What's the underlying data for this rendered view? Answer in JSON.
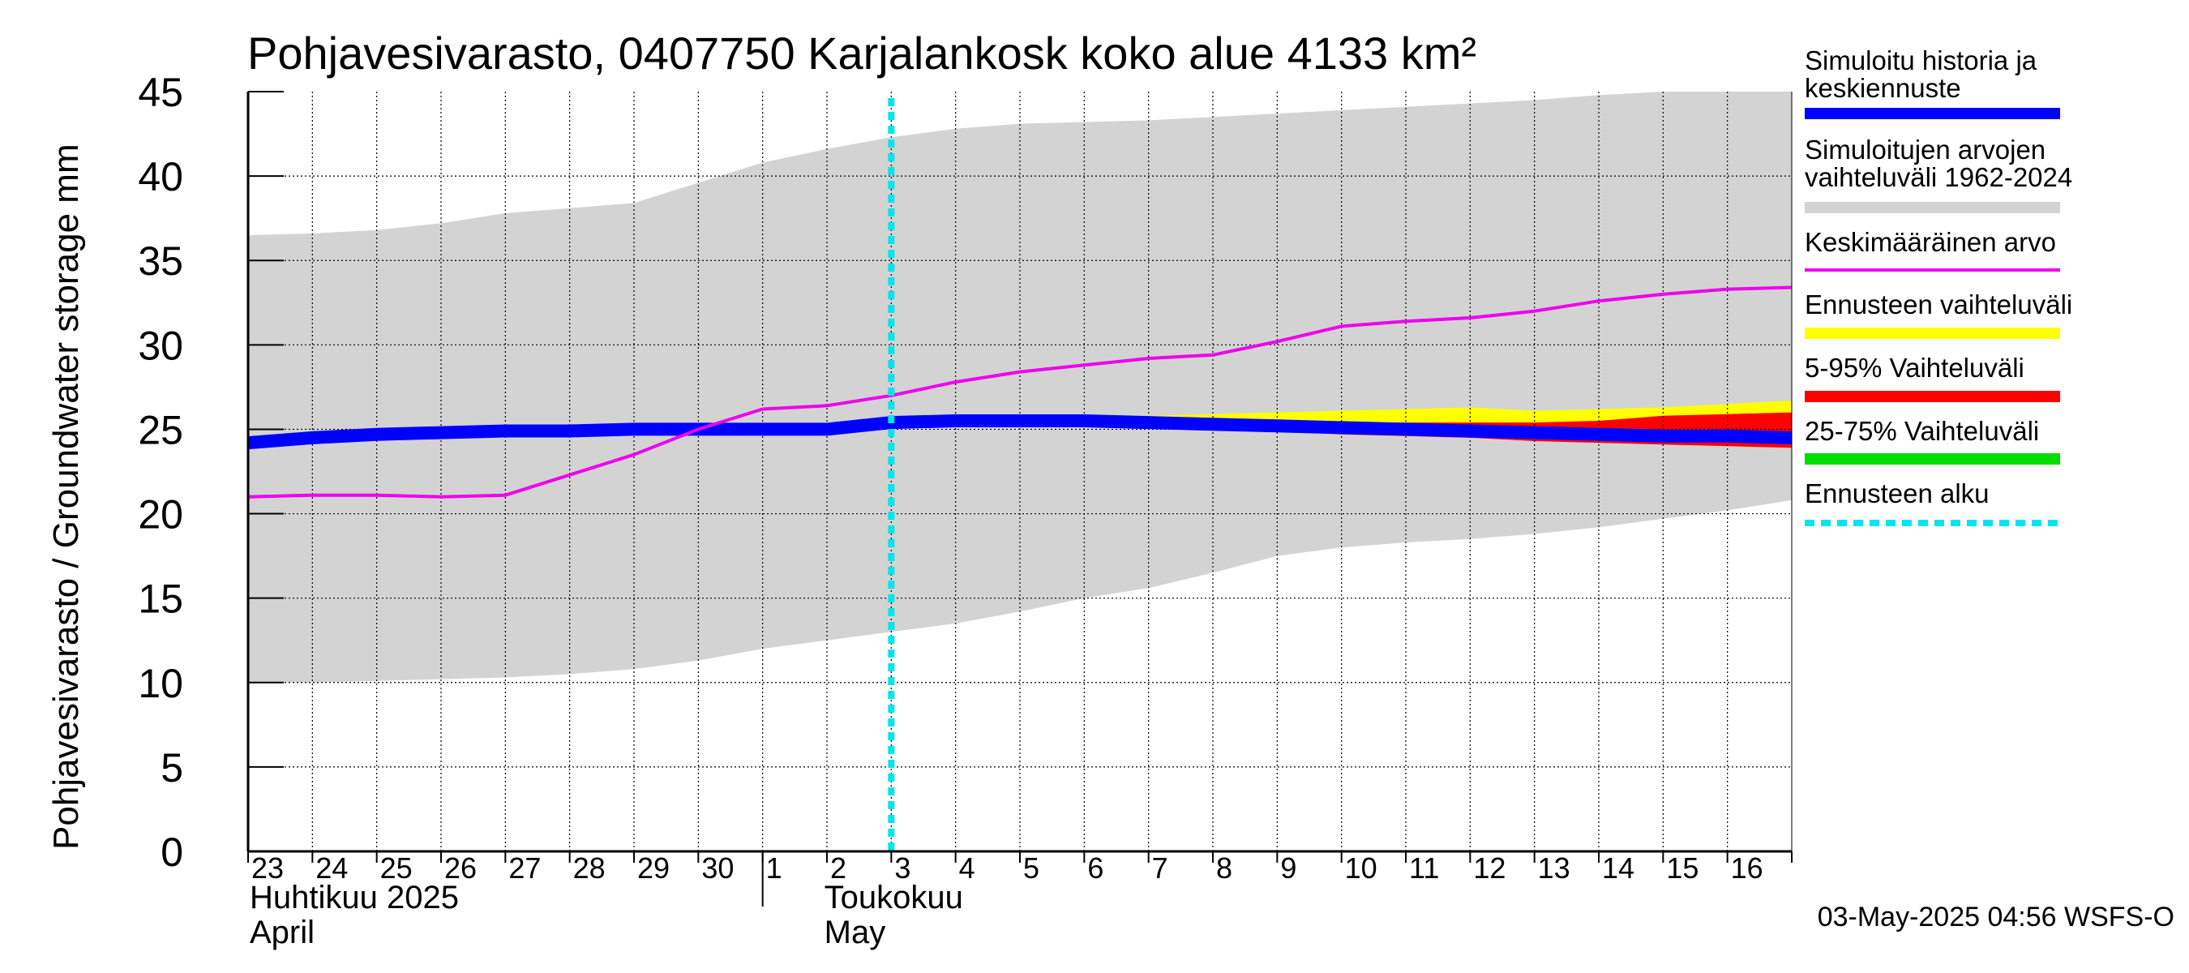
{
  "chart_data": {
    "type": "area",
    "title": "Pohjavesivarasto, 0407750 Karjalankosk koko alue 4133 km²",
    "ylabel": "Pohjavesivarasto / Groundwater storage   mm",
    "ylim": [
      0,
      45
    ],
    "yticks": [
      0,
      5,
      10,
      15,
      20,
      25,
      30,
      35,
      40,
      45
    ],
    "xlim": [
      0,
      24
    ],
    "x_day_labels": [
      "23",
      "24",
      "25",
      "26",
      "27",
      "28",
      "29",
      "30",
      "1",
      "2",
      "3",
      "4",
      "5",
      "6",
      "7",
      "8",
      "9",
      "10",
      "11",
      "12",
      "13",
      "14",
      "15",
      "16"
    ],
    "month_labels": [
      {
        "line1": "Huhtikuu  2025",
        "line2": "April",
        "start_index": 0
      },
      {
        "line1": "Toukokuu",
        "line2": "May",
        "start_index": 8
      }
    ],
    "forecast_start_x": 10,
    "grid": true,
    "legend_position": "right",
    "series": [
      {
        "name": "Simuloitujen arvojen vaihteluväli 1962-2024",
        "kind": "band",
        "color": "#d3d3d3",
        "x": [
          0,
          1,
          2,
          3,
          4,
          5,
          6,
          7,
          8,
          9,
          10,
          11,
          12,
          13,
          14,
          15,
          16,
          17,
          18,
          19,
          20,
          21,
          22,
          23,
          24
        ],
        "lower": [
          10.0,
          10.0,
          10.1,
          10.2,
          10.3,
          10.5,
          10.8,
          11.3,
          12.0,
          12.5,
          13.0,
          13.5,
          14.2,
          15.0,
          15.6,
          16.5,
          17.5,
          18.0,
          18.3,
          18.5,
          18.8,
          19.2,
          19.7,
          20.2,
          20.8
        ],
        "upper": [
          36.5,
          36.6,
          36.8,
          37.2,
          37.8,
          38.1,
          38.4,
          39.6,
          40.8,
          41.6,
          42.3,
          42.8,
          43.1,
          43.2,
          43.3,
          43.5,
          43.7,
          43.9,
          44.1,
          44.3,
          44.5,
          44.8,
          45.0,
          45.0,
          45.0
        ]
      },
      {
        "name": "Ennusteen vaihteluväli",
        "kind": "band",
        "color": "#ffff00",
        "x": [
          10,
          11,
          12,
          13,
          14,
          15,
          16,
          17,
          18,
          19,
          20,
          21,
          22,
          23,
          24
        ],
        "lower": [
          25.2,
          25.3,
          25.3,
          25.2,
          25.1,
          25.0,
          24.9,
          24.8,
          24.7,
          24.6,
          24.5,
          24.4,
          24.3,
          24.2,
          24.1
        ],
        "upper": [
          25.5,
          25.5,
          25.6,
          25.7,
          25.8,
          25.9,
          26.0,
          26.1,
          26.2,
          26.3,
          26.1,
          26.2,
          26.3,
          26.5,
          26.7
        ]
      },
      {
        "name": "5-95% Vaihteluväli",
        "kind": "band",
        "color": "#ff0000",
        "x": [
          10,
          11,
          12,
          13,
          14,
          15,
          16,
          17,
          18,
          19,
          20,
          21,
          22,
          23,
          24
        ],
        "lower": [
          25.2,
          25.3,
          25.3,
          25.2,
          25.1,
          25.0,
          24.9,
          24.7,
          24.6,
          24.5,
          24.3,
          24.2,
          24.1,
          24.0,
          23.9
        ],
        "upper": [
          25.4,
          25.4,
          25.4,
          25.4,
          25.4,
          25.4,
          25.4,
          25.4,
          25.4,
          25.4,
          25.4,
          25.5,
          25.8,
          25.9,
          26.0
        ]
      },
      {
        "name": "25-75% Vaihteluväli",
        "kind": "band",
        "color": "#00dd00",
        "x": [
          10,
          11,
          12,
          13,
          14,
          15,
          16,
          17,
          18,
          19,
          20,
          21,
          22,
          23,
          24
        ],
        "lower": [
          25.2,
          25.3,
          25.3,
          25.3,
          25.3,
          25.2,
          25.1,
          25.0,
          24.9,
          24.8,
          24.7,
          24.6,
          24.5,
          24.4,
          24.3
        ],
        "upper": [
          25.3,
          25.4,
          25.4,
          25.4,
          25.4,
          25.3,
          25.3,
          25.2,
          25.1,
          25.0,
          24.9,
          24.9,
          24.8,
          24.7,
          24.7
        ]
      },
      {
        "name": "Simuloitu historia ja keskiennuste",
        "kind": "line",
        "color": "#0000ff",
        "x": [
          0,
          1,
          2,
          3,
          4,
          5,
          6,
          7,
          8,
          9,
          10,
          11,
          12,
          13,
          14,
          15,
          16,
          17,
          18,
          19,
          20,
          21,
          22,
          23,
          24
        ],
        "y": [
          24.2,
          24.5,
          24.7,
          24.8,
          24.9,
          24.9,
          25.0,
          25.0,
          25.0,
          25.0,
          25.4,
          25.5,
          25.5,
          25.5,
          25.4,
          25.3,
          25.2,
          25.1,
          25.0,
          24.9,
          24.8,
          24.7,
          24.6,
          24.6,
          24.5
        ]
      },
      {
        "name": "Keskimääräinen arvo",
        "kind": "line",
        "color": "#ee00ee",
        "x": [
          0,
          1,
          2,
          3,
          4,
          5,
          6,
          7,
          8,
          9,
          10,
          11,
          12,
          13,
          14,
          15,
          16,
          17,
          18,
          19,
          20,
          21,
          22,
          23,
          24
        ],
        "y": [
          21.0,
          21.1,
          21.1,
          21.0,
          21.1,
          22.3,
          23.5,
          25.0,
          26.2,
          26.4,
          27.0,
          27.8,
          28.4,
          28.8,
          29.2,
          29.4,
          30.2,
          31.1,
          31.4,
          31.6,
          32.0,
          32.6,
          33.0,
          33.3,
          33.4
        ]
      },
      {
        "name": "Ennusteen alku",
        "kind": "vline",
        "color": "#00e5ee",
        "x": 10
      }
    ],
    "legend": [
      {
        "label": "Simuloitu historia ja keskiennuste",
        "color": "#0000ff",
        "style": "thick"
      },
      {
        "label": "Simuloitujen arvojen vaihteluväli 1962-2024",
        "color": "#d3d3d3",
        "style": "thick"
      },
      {
        "label": "Keskimääräinen arvo",
        "color": "#ee00ee",
        "style": "thin"
      },
      {
        "label": "Ennusteen vaihteluväli",
        "color": "#ffff00",
        "style": "thick"
      },
      {
        "label": "5-95% Vaihteluväli",
        "color": "#ff0000",
        "style": "thick"
      },
      {
        "label": "25-75% Vaihteluväli",
        "color": "#00dd00",
        "style": "thick"
      },
      {
        "label": "Ennusteen alku",
        "color": "#00e5ee",
        "style": "dotted"
      }
    ]
  },
  "footer": "03-May-2025 04:56 WSFS-O"
}
